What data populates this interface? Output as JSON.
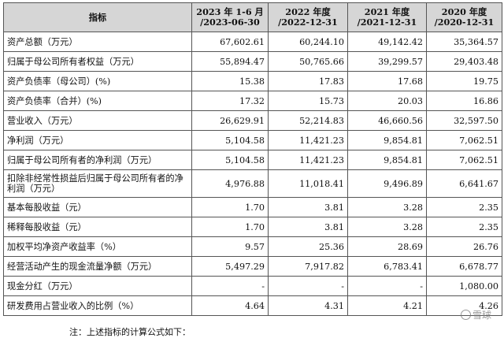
{
  "table": {
    "headers": [
      {
        "line1": "指标",
        "line2": ""
      },
      {
        "line1": "2023 年 1-6 月",
        "line2": "/2023-06-30"
      },
      {
        "line1": "2022 年度",
        "line2": "/2022-12-31"
      },
      {
        "line1": "2021 年度",
        "line2": "/2021-12-31"
      },
      {
        "line1": "2020 年度",
        "line2": "/2020-12-31"
      }
    ],
    "rows": [
      {
        "label": "资产总额（万元）",
        "values": [
          "67,602.61",
          "60,244.10",
          "49,142.42",
          "35,364.57"
        ]
      },
      {
        "label": "归属于母公司所有者权益（万元）",
        "values": [
          "55,894.47",
          "50,765.66",
          "39,299.57",
          "29,403.48"
        ]
      },
      {
        "label": "资产负债率（母公司）(%)",
        "values": [
          "15.38",
          "17.83",
          "17.68",
          "19.75"
        ]
      },
      {
        "label": "资产负债率（合并）(%)",
        "values": [
          "17.32",
          "15.73",
          "20.03",
          "16.86"
        ]
      },
      {
        "label": "营业收入（万元）",
        "values": [
          "26,629.91",
          "52,214.83",
          "46,660.56",
          "32,597.50"
        ]
      },
      {
        "label": "净利润（万元）",
        "values": [
          "5,104.58",
          "11,421.23",
          "9,854.81",
          "7,062.51"
        ]
      },
      {
        "label": "归属于母公司所有者的净利润（万元）",
        "values": [
          "5,104.58",
          "11,421.23",
          "9,854.81",
          "7,062.51"
        ]
      },
      {
        "label": "扣除非经常性损益后归属于母公司所有者的净利润（万元）",
        "values": [
          "4,976.88",
          "11,018.41",
          "9,496.89",
          "6,641.67"
        ]
      },
      {
        "label": "基本每股收益（元）",
        "values": [
          "1.70",
          "3.81",
          "3.28",
          "2.35"
        ]
      },
      {
        "label": "稀释每股收益（元）",
        "values": [
          "1.70",
          "3.81",
          "3.28",
          "2.35"
        ]
      },
      {
        "label": "加权平均净资产收益率（%）",
        "values": [
          "9.57",
          "25.36",
          "28.69",
          "26.76"
        ]
      },
      {
        "label": "经营活动产生的现金流量净额（万元）",
        "values": [
          "5,497.29",
          "7,917.82",
          "6,783.41",
          "6,678.77"
        ]
      },
      {
        "label": "现金分红（万元）",
        "values": [
          "-",
          "-",
          "-",
          "1,080.00"
        ]
      },
      {
        "label": "研发费用占营业收入的比例（%）",
        "values": [
          "4.64",
          "4.31",
          "4.21",
          "4.26"
        ]
      }
    ]
  },
  "note": "注：上述指标的计算公式如下：",
  "watermark": "雪球"
}
